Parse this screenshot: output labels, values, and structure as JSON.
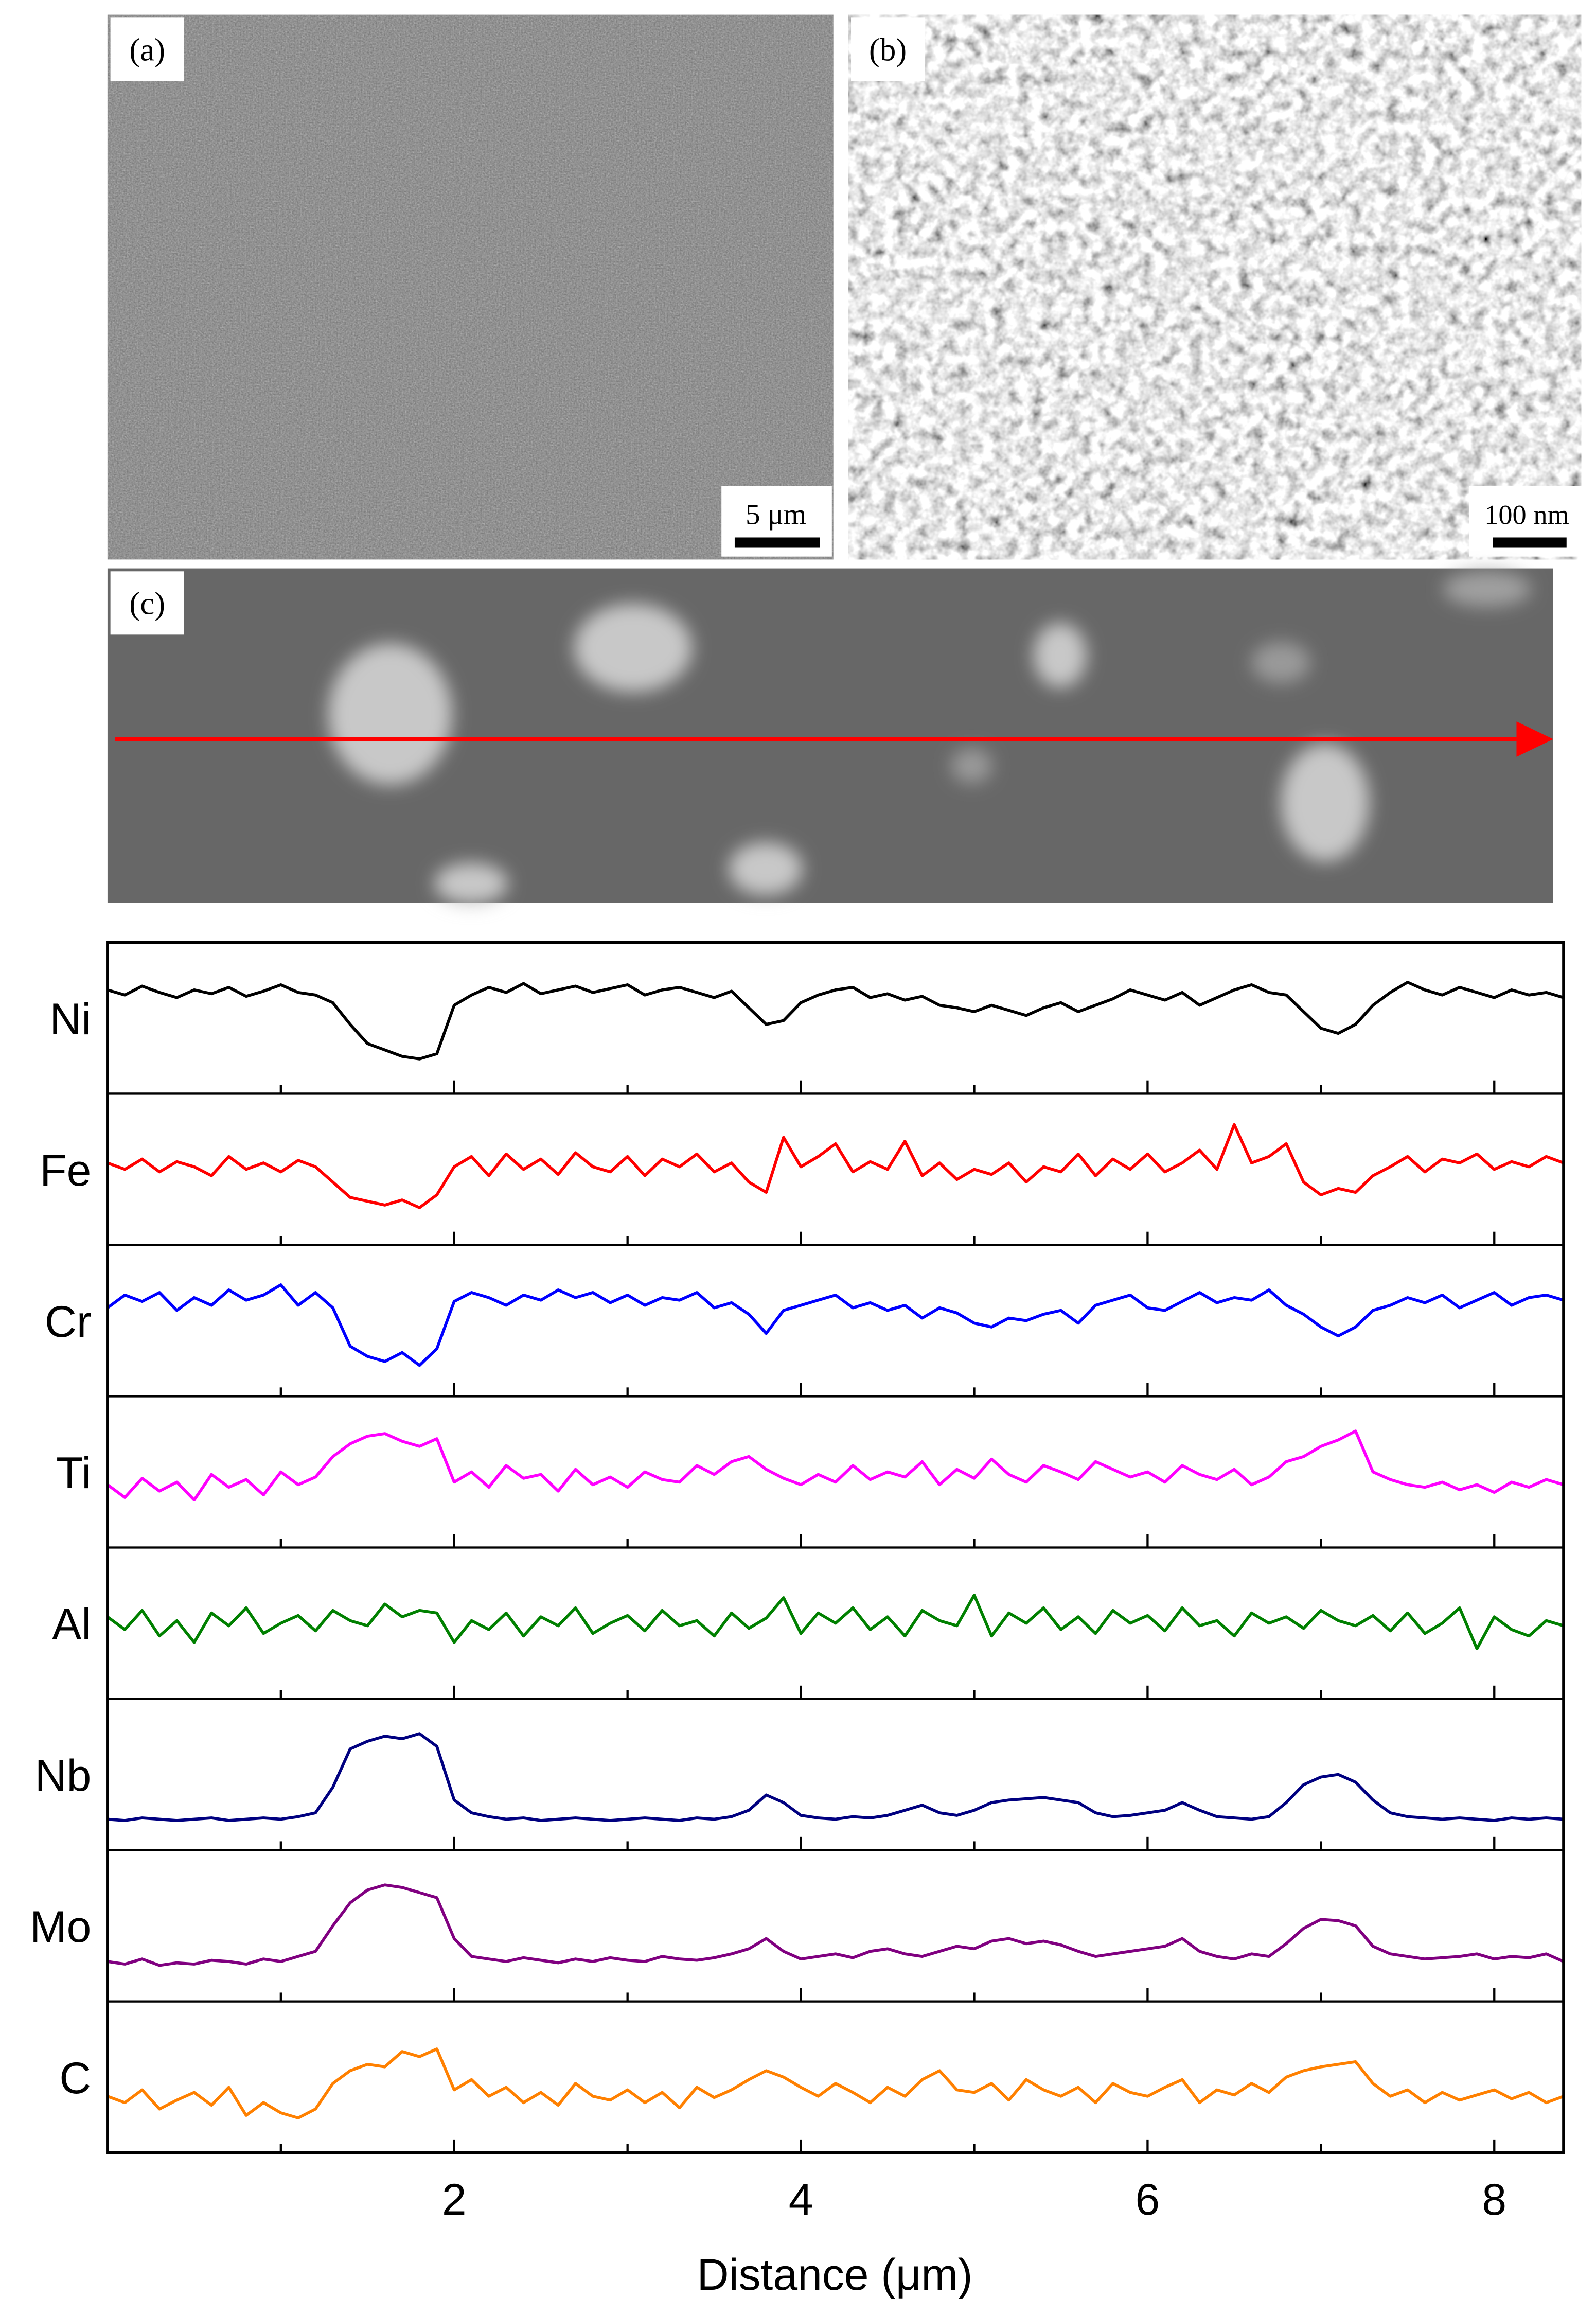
{
  "figure": {
    "panels": [
      {
        "label": "(a)",
        "scale_bar": "5 μm"
      },
      {
        "label": "(b)",
        "scale_bar": "100 nm"
      },
      {
        "label": "(c)"
      }
    ]
  },
  "chart_data": {
    "type": "line",
    "xlabel": "Distance (μm)",
    "x": [
      0,
      0.1,
      0.2,
      0.3,
      0.4,
      0.5,
      0.6,
      0.7,
      0.8,
      0.9,
      1,
      1.1,
      1.2,
      1.3,
      1.4,
      1.5,
      1.6,
      1.7,
      1.8,
      1.9,
      2,
      2.1,
      2.2,
      2.3,
      2.4,
      2.5,
      2.6,
      2.7,
      2.8,
      2.9,
      3,
      3.1,
      3.2,
      3.3,
      3.4,
      3.5,
      3.6,
      3.7,
      3.8,
      3.9,
      4,
      4.1,
      4.2,
      4.3,
      4.4,
      4.5,
      4.6,
      4.7,
      4.8,
      4.9,
      5,
      5.1,
      5.2,
      5.3,
      5.4,
      5.5,
      5.6,
      5.7,
      5.8,
      5.9,
      6,
      6.1,
      6.2,
      6.3,
      6.4,
      6.5,
      6.6,
      6.7,
      6.8,
      6.9,
      7,
      7.1,
      7.2,
      7.3,
      7.4,
      7.5,
      7.6,
      7.7,
      7.8,
      7.9,
      8,
      8.1,
      8.2,
      8.3,
      8.4
    ],
    "xlim": [
      0,
      8.4
    ],
    "xticks": [
      2,
      4,
      6,
      8
    ],
    "xminorticks": [
      1,
      3,
      5,
      7
    ],
    "ylim": [
      0,
      1
    ],
    "series": [
      {
        "name": "Ni",
        "color": "#000000",
        "values": [
          0.72,
          0.68,
          0.75,
          0.7,
          0.66,
          0.72,
          0.69,
          0.74,
          0.67,
          0.71,
          0.76,
          0.7,
          0.68,
          0.62,
          0.45,
          0.3,
          0.25,
          0.2,
          0.18,
          0.22,
          0.6,
          0.68,
          0.74,
          0.7,
          0.77,
          0.69,
          0.72,
          0.75,
          0.7,
          0.73,
          0.76,
          0.68,
          0.72,
          0.74,
          0.7,
          0.66,
          0.71,
          0.58,
          0.45,
          0.48,
          0.62,
          0.68,
          0.72,
          0.74,
          0.66,
          0.69,
          0.64,
          0.67,
          0.6,
          0.58,
          0.55,
          0.6,
          0.56,
          0.52,
          0.58,
          0.62,
          0.55,
          0.6,
          0.65,
          0.72,
          0.68,
          0.64,
          0.7,
          0.6,
          0.66,
          0.72,
          0.76,
          0.7,
          0.68,
          0.55,
          0.42,
          0.38,
          0.45,
          0.6,
          0.7,
          0.78,
          0.72,
          0.68,
          0.74,
          0.7,
          0.66,
          0.72,
          0.68,
          0.7,
          0.66
        ]
      },
      {
        "name": "Fe",
        "color": "#ff0000",
        "values": [
          0.55,
          0.5,
          0.58,
          0.48,
          0.56,
          0.52,
          0.45,
          0.6,
          0.5,
          0.55,
          0.48,
          0.57,
          0.52,
          0.4,
          0.28,
          0.25,
          0.22,
          0.26,
          0.2,
          0.3,
          0.52,
          0.6,
          0.45,
          0.62,
          0.5,
          0.58,
          0.46,
          0.63,
          0.52,
          0.48,
          0.6,
          0.45,
          0.58,
          0.52,
          0.62,
          0.48,
          0.55,
          0.4,
          0.32,
          0.75,
          0.52,
          0.6,
          0.7,
          0.48,
          0.56,
          0.5,
          0.72,
          0.45,
          0.55,
          0.42,
          0.5,
          0.46,
          0.55,
          0.4,
          0.52,
          0.48,
          0.62,
          0.45,
          0.58,
          0.5,
          0.62,
          0.48,
          0.55,
          0.65,
          0.5,
          0.85,
          0.55,
          0.6,
          0.7,
          0.4,
          0.3,
          0.35,
          0.32,
          0.45,
          0.52,
          0.6,
          0.48,
          0.58,
          0.55,
          0.62,
          0.5,
          0.56,
          0.52,
          0.6,
          0.55
        ]
      },
      {
        "name": "Cr",
        "color": "#0000ff",
        "values": [
          0.6,
          0.7,
          0.65,
          0.72,
          0.58,
          0.68,
          0.62,
          0.74,
          0.66,
          0.7,
          0.78,
          0.62,
          0.72,
          0.6,
          0.3,
          0.22,
          0.18,
          0.25,
          0.15,
          0.28,
          0.65,
          0.72,
          0.68,
          0.62,
          0.7,
          0.66,
          0.74,
          0.68,
          0.72,
          0.64,
          0.7,
          0.62,
          0.68,
          0.66,
          0.72,
          0.6,
          0.64,
          0.55,
          0.4,
          0.58,
          0.62,
          0.66,
          0.7,
          0.6,
          0.64,
          0.58,
          0.62,
          0.52,
          0.6,
          0.56,
          0.48,
          0.45,
          0.52,
          0.5,
          0.55,
          0.58,
          0.48,
          0.62,
          0.66,
          0.7,
          0.6,
          0.58,
          0.65,
          0.72,
          0.64,
          0.68,
          0.66,
          0.74,
          0.62,
          0.55,
          0.45,
          0.38,
          0.45,
          0.58,
          0.62,
          0.68,
          0.64,
          0.7,
          0.6,
          0.66,
          0.72,
          0.62,
          0.68,
          0.7,
          0.66
        ]
      },
      {
        "name": "Ti",
        "color": "#ff00ff",
        "values": [
          0.4,
          0.3,
          0.45,
          0.35,
          0.42,
          0.28,
          0.48,
          0.38,
          0.44,
          0.32,
          0.5,
          0.4,
          0.46,
          0.62,
          0.72,
          0.78,
          0.8,
          0.74,
          0.7,
          0.76,
          0.42,
          0.5,
          0.38,
          0.55,
          0.45,
          0.48,
          0.35,
          0.52,
          0.4,
          0.46,
          0.38,
          0.5,
          0.44,
          0.42,
          0.55,
          0.48,
          0.58,
          0.62,
          0.52,
          0.45,
          0.4,
          0.48,
          0.42,
          0.55,
          0.44,
          0.5,
          0.46,
          0.58,
          0.4,
          0.52,
          0.45,
          0.6,
          0.48,
          0.42,
          0.55,
          0.5,
          0.44,
          0.58,
          0.52,
          0.46,
          0.5,
          0.42,
          0.55,
          0.48,
          0.44,
          0.52,
          0.4,
          0.46,
          0.58,
          0.62,
          0.7,
          0.75,
          0.82,
          0.5,
          0.44,
          0.4,
          0.38,
          0.42,
          0.36,
          0.4,
          0.34,
          0.42,
          0.38,
          0.44,
          0.4
        ]
      },
      {
        "name": "Al",
        "color": "#008000",
        "values": [
          0.55,
          0.45,
          0.6,
          0.4,
          0.52,
          0.35,
          0.58,
          0.48,
          0.62,
          0.42,
          0.5,
          0.56,
          0.44,
          0.6,
          0.52,
          0.48,
          0.65,
          0.55,
          0.6,
          0.58,
          0.35,
          0.52,
          0.45,
          0.58,
          0.4,
          0.55,
          0.48,
          0.62,
          0.42,
          0.5,
          0.56,
          0.44,
          0.6,
          0.48,
          0.52,
          0.4,
          0.58,
          0.46,
          0.54,
          0.7,
          0.42,
          0.58,
          0.5,
          0.62,
          0.45,
          0.55,
          0.4,
          0.6,
          0.52,
          0.48,
          0.72,
          0.4,
          0.58,
          0.5,
          0.62,
          0.45,
          0.55,
          0.42,
          0.6,
          0.5,
          0.56,
          0.44,
          0.62,
          0.48,
          0.52,
          0.4,
          0.58,
          0.5,
          0.55,
          0.46,
          0.6,
          0.52,
          0.48,
          0.56,
          0.44,
          0.58,
          0.42,
          0.5,
          0.62,
          0.3,
          0.55,
          0.45,
          0.4,
          0.52,
          0.48
        ]
      },
      {
        "name": "Nb",
        "color": "#000080",
        "values": [
          0.15,
          0.14,
          0.16,
          0.15,
          0.14,
          0.15,
          0.16,
          0.14,
          0.15,
          0.16,
          0.15,
          0.17,
          0.2,
          0.4,
          0.7,
          0.76,
          0.8,
          0.78,
          0.82,
          0.72,
          0.3,
          0.2,
          0.17,
          0.15,
          0.16,
          0.14,
          0.15,
          0.16,
          0.15,
          0.14,
          0.15,
          0.16,
          0.15,
          0.14,
          0.16,
          0.15,
          0.17,
          0.22,
          0.34,
          0.28,
          0.18,
          0.16,
          0.15,
          0.17,
          0.16,
          0.18,
          0.22,
          0.26,
          0.2,
          0.18,
          0.22,
          0.28,
          0.3,
          0.31,
          0.32,
          0.3,
          0.28,
          0.2,
          0.17,
          0.18,
          0.2,
          0.22,
          0.28,
          0.22,
          0.17,
          0.16,
          0.15,
          0.17,
          0.28,
          0.42,
          0.48,
          0.5,
          0.44,
          0.3,
          0.2,
          0.17,
          0.16,
          0.15,
          0.16,
          0.15,
          0.14,
          0.16,
          0.15,
          0.16,
          0.15
        ]
      },
      {
        "name": "Mo",
        "color": "#800080",
        "values": [
          0.22,
          0.2,
          0.24,
          0.19,
          0.21,
          0.2,
          0.23,
          0.22,
          0.2,
          0.24,
          0.22,
          0.26,
          0.3,
          0.5,
          0.68,
          0.78,
          0.82,
          0.8,
          0.76,
          0.72,
          0.4,
          0.26,
          0.24,
          0.22,
          0.25,
          0.23,
          0.21,
          0.24,
          0.22,
          0.25,
          0.23,
          0.22,
          0.26,
          0.24,
          0.23,
          0.25,
          0.28,
          0.32,
          0.4,
          0.3,
          0.24,
          0.26,
          0.28,
          0.25,
          0.3,
          0.32,
          0.28,
          0.26,
          0.3,
          0.34,
          0.32,
          0.38,
          0.4,
          0.36,
          0.38,
          0.35,
          0.3,
          0.26,
          0.28,
          0.3,
          0.32,
          0.34,
          0.4,
          0.3,
          0.26,
          0.24,
          0.28,
          0.26,
          0.36,
          0.48,
          0.55,
          0.54,
          0.5,
          0.34,
          0.28,
          0.26,
          0.24,
          0.25,
          0.26,
          0.28,
          0.24,
          0.26,
          0.25,
          0.28,
          0.22
        ]
      },
      {
        "name": "C",
        "color": "#ff8000",
        "values": [
          0.35,
          0.3,
          0.4,
          0.25,
          0.32,
          0.38,
          0.28,
          0.42,
          0.2,
          0.3,
          0.22,
          0.18,
          0.25,
          0.45,
          0.55,
          0.6,
          0.58,
          0.7,
          0.66,
          0.72,
          0.4,
          0.48,
          0.35,
          0.42,
          0.3,
          0.38,
          0.28,
          0.45,
          0.35,
          0.32,
          0.4,
          0.3,
          0.38,
          0.26,
          0.42,
          0.34,
          0.4,
          0.48,
          0.55,
          0.5,
          0.42,
          0.35,
          0.45,
          0.38,
          0.3,
          0.42,
          0.35,
          0.48,
          0.55,
          0.4,
          0.38,
          0.45,
          0.32,
          0.48,
          0.4,
          0.35,
          0.42,
          0.3,
          0.45,
          0.38,
          0.35,
          0.42,
          0.48,
          0.3,
          0.4,
          0.36,
          0.45,
          0.38,
          0.5,
          0.55,
          0.58,
          0.6,
          0.62,
          0.45,
          0.35,
          0.4,
          0.3,
          0.38,
          0.32,
          0.36,
          0.4,
          0.33,
          0.38,
          0.3,
          0.35
        ]
      }
    ]
  }
}
